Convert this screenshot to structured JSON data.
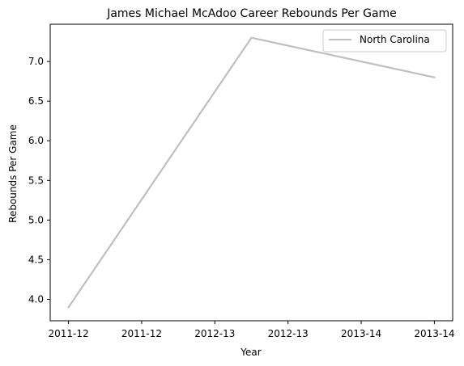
{
  "chart_data": {
    "type": "line",
    "title": "James Michael McAdoo Career Rebounds Per Game",
    "xlabel": "Year",
    "ylabel": "Rebounds Per Game",
    "x_tick_labels": [
      "2011-12",
      "2011-12",
      "2012-13",
      "2012-13",
      "2013-14",
      "2013-14"
    ],
    "x_tick_values": [
      0,
      0.5,
      1,
      1.5,
      2,
      2.5
    ],
    "xlim": [
      -0.125,
      2.625
    ],
    "ylim": [
      3.73,
      7.47
    ],
    "y_ticks": [
      4.0,
      4.5,
      5.0,
      5.5,
      6.0,
      6.5,
      7.0
    ],
    "y_tick_labels": [
      "4.0",
      "4.5",
      "5.0",
      "5.5",
      "6.0",
      "6.5",
      "7.0"
    ],
    "grid": false,
    "legend_position": "top-right",
    "series": [
      {
        "name": "North Carolina",
        "color": "#bfbfbf",
        "x": [
          0,
          1.25,
          2.5
        ],
        "y": [
          3.9,
          7.3,
          6.8
        ]
      }
    ]
  }
}
